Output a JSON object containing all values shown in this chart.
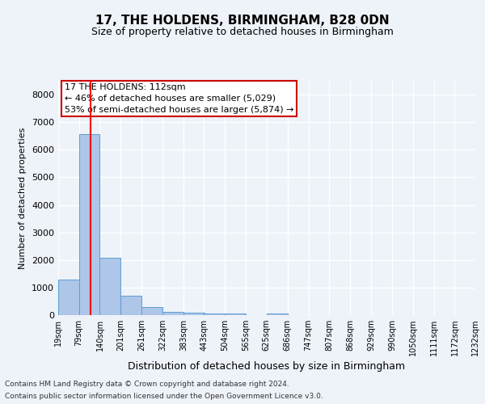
{
  "title": "17, THE HOLDENS, BIRMINGHAM, B28 0DN",
  "subtitle": "Size of property relative to detached houses in Birmingham",
  "xlabel": "Distribution of detached houses by size in Birmingham",
  "ylabel": "Number of detached properties",
  "annotation_title": "17 THE HOLDENS: 112sqm",
  "annotation_line1": "← 46% of detached houses are smaller (5,029)",
  "annotation_line2": "53% of semi-detached houses are larger (5,874) →",
  "footer_line1": "Contains HM Land Registry data © Crown copyright and database right 2024.",
  "footer_line2": "Contains public sector information licensed under the Open Government Licence v3.0.",
  "bar_left_edges": [
    19,
    79,
    140,
    201,
    261,
    322,
    383,
    443,
    504,
    565,
    625,
    686,
    747,
    807,
    868,
    929,
    990,
    1050,
    1111,
    1172
  ],
  "bar_widths": [
    61,
    61,
    61,
    61,
    61,
    61,
    61,
    61,
    61,
    61,
    61,
    61,
    61,
    61,
    61,
    61,
    61,
    61,
    61,
    61
  ],
  "bar_heights": [
    1300,
    6570,
    2070,
    690,
    280,
    130,
    80,
    50,
    70,
    0,
    70,
    0,
    0,
    0,
    0,
    0,
    0,
    0,
    0,
    0
  ],
  "bar_color": "#aec6e8",
  "bar_edge_color": "#5a9fd4",
  "red_line_x": 112,
  "ylim": [
    0,
    8500
  ],
  "yticks": [
    0,
    1000,
    2000,
    3000,
    4000,
    5000,
    6000,
    7000,
    8000
  ],
  "xlim": [
    19,
    1232
  ],
  "xtick_labels": [
    "19sqm",
    "79sqm",
    "140sqm",
    "201sqm",
    "261sqm",
    "322sqm",
    "383sqm",
    "443sqm",
    "504sqm",
    "565sqm",
    "625sqm",
    "686sqm",
    "747sqm",
    "807sqm",
    "868sqm",
    "929sqm",
    "990sqm",
    "1050sqm",
    "1111sqm",
    "1172sqm",
    "1232sqm"
  ],
  "xtick_positions": [
    19,
    79,
    140,
    201,
    261,
    322,
    383,
    443,
    504,
    565,
    625,
    686,
    747,
    807,
    868,
    929,
    990,
    1050,
    1111,
    1172,
    1232
  ],
  "background_color": "#eef2f9",
  "grid_color": "#ffffff",
  "annotation_box_color": "#ffffff",
  "annotation_box_edge": "#cc0000",
  "title_fontsize": 11,
  "subtitle_fontsize": 9,
  "ylabel_fontsize": 8,
  "xlabel_fontsize": 9,
  "tick_fontsize": 8,
  "xtick_fontsize": 7,
  "footer_fontsize": 6.5,
  "annotation_fontsize": 8
}
